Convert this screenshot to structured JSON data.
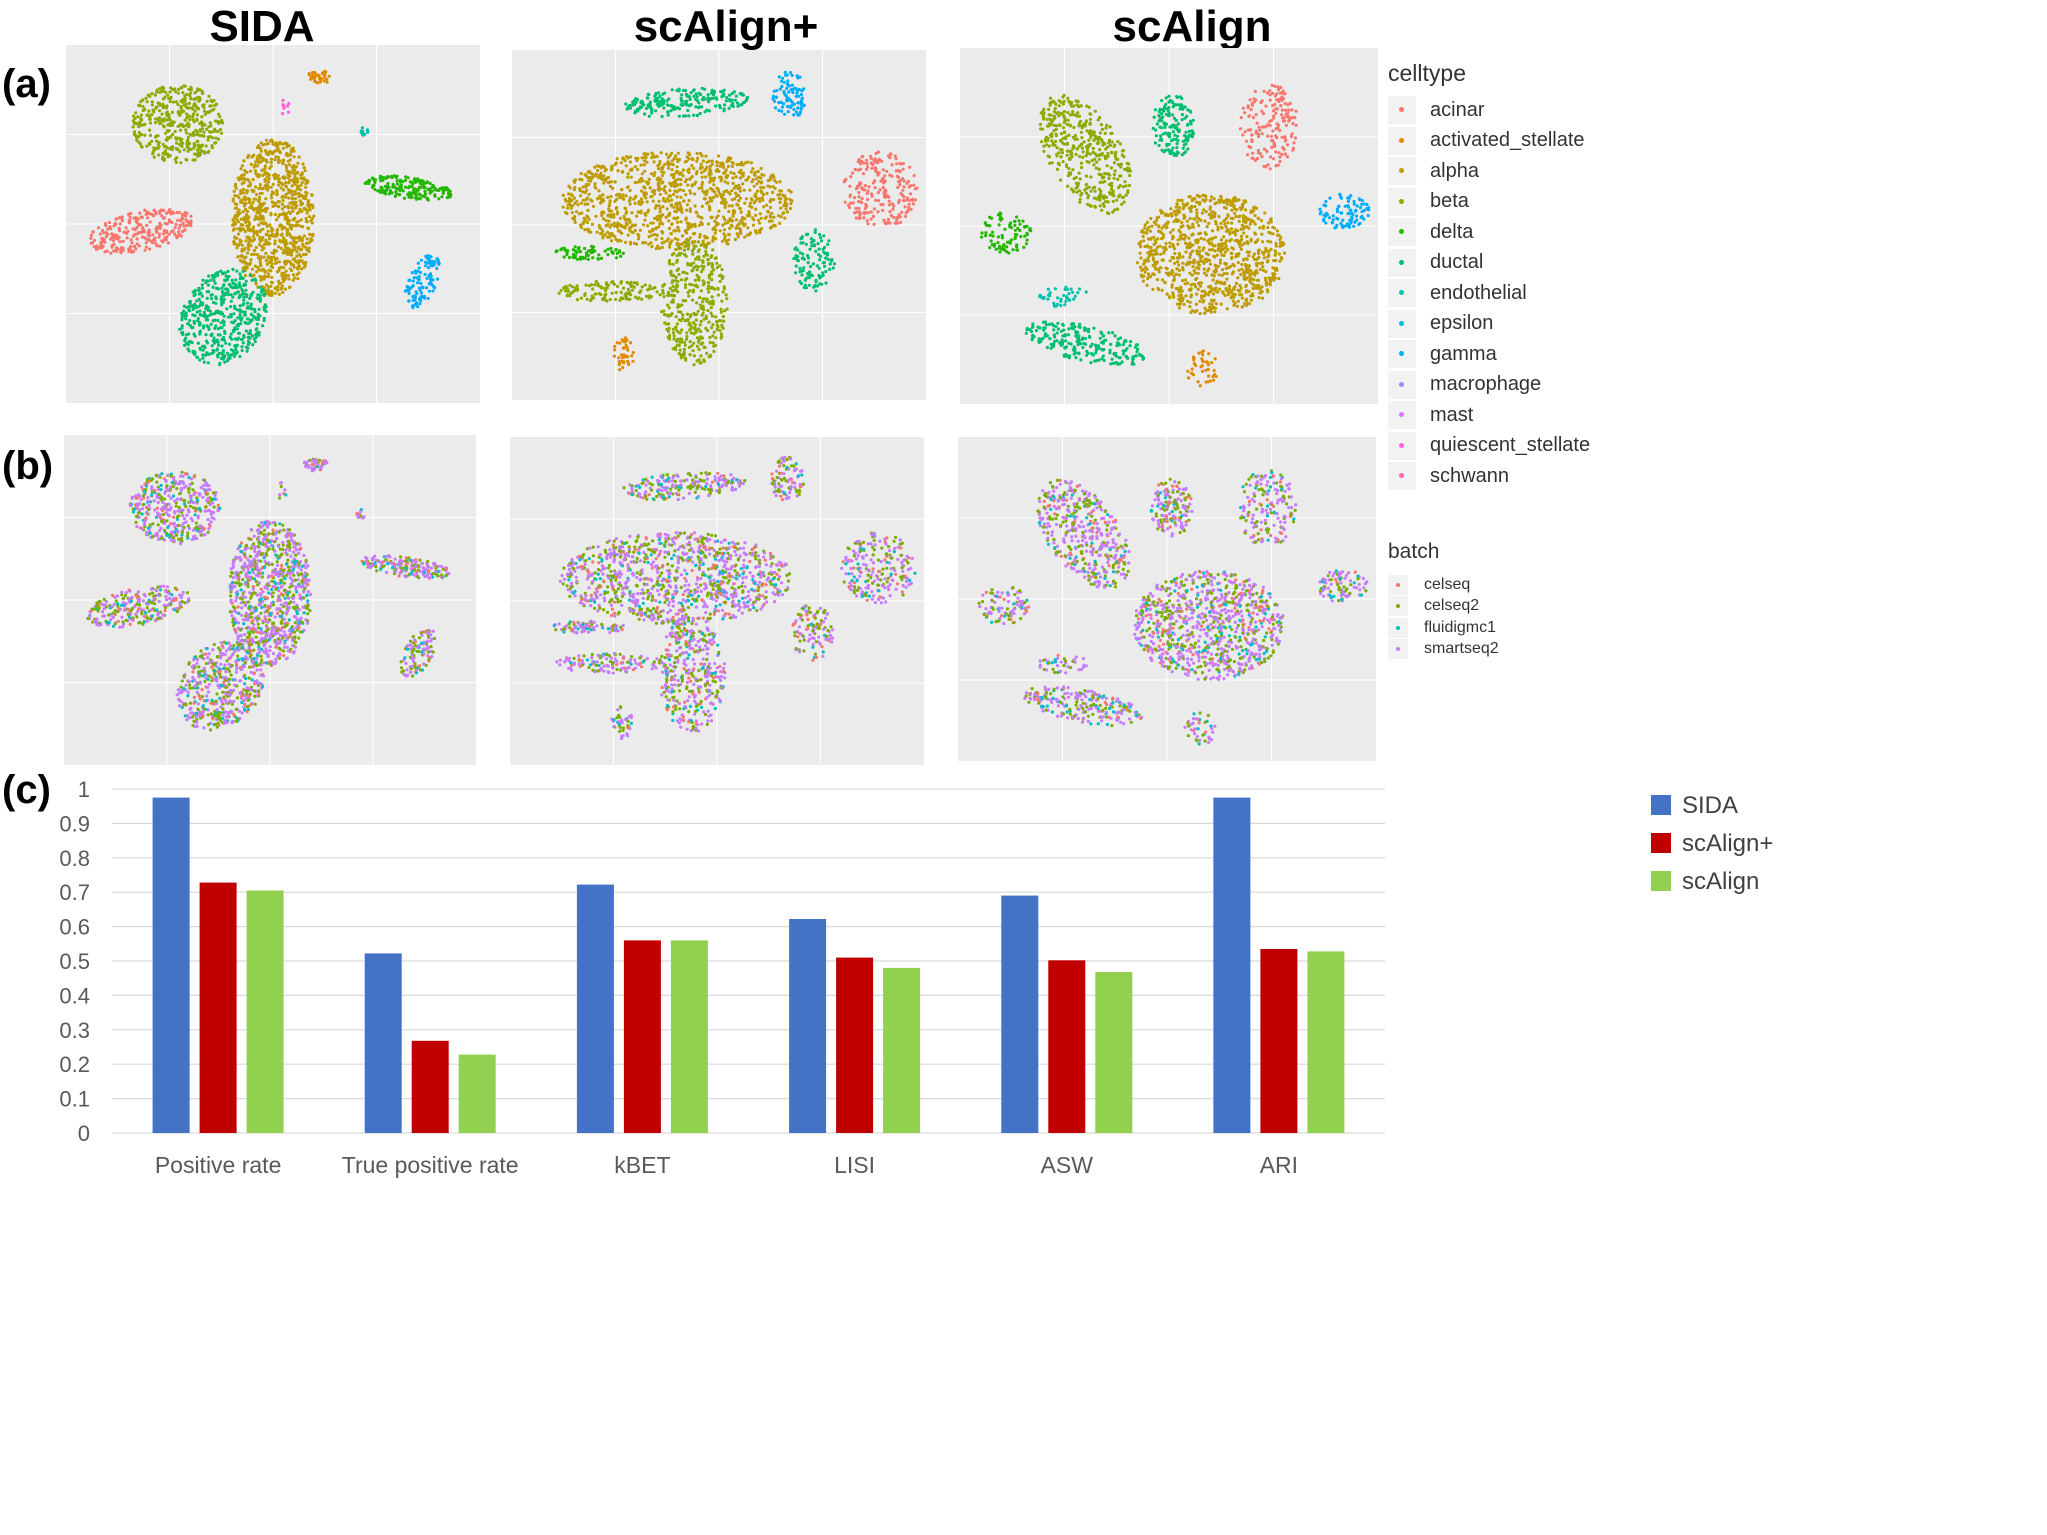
{
  "figure": {
    "column_titles": [
      "SIDA",
      "scAlign+",
      "scAlign"
    ],
    "row_labels": [
      "(a)",
      "(b)",
      "(c)"
    ]
  },
  "celltype_legend": {
    "title": "celltype",
    "items": [
      {
        "label": "acinar",
        "color": "#F8766D"
      },
      {
        "label": "activated_stellate",
        "color": "#E18A00"
      },
      {
        "label": "alpha",
        "color": "#BE9C00"
      },
      {
        "label": "beta",
        "color": "#8CAB00"
      },
      {
        "label": "delta",
        "color": "#24B700"
      },
      {
        "label": "ductal",
        "color": "#00BE70"
      },
      {
        "label": "endothelial",
        "color": "#00C1AB"
      },
      {
        "label": "epsilon",
        "color": "#00BBDA"
      },
      {
        "label": "gamma",
        "color": "#00ACFC"
      },
      {
        "label": "macrophage",
        "color": "#8B93FF"
      },
      {
        "label": "mast",
        "color": "#D575FE"
      },
      {
        "label": "quiescent_stellate",
        "color": "#F962DD"
      },
      {
        "label": "schwann",
        "color": "#FF65AC"
      }
    ]
  },
  "batch_legend": {
    "title": "batch",
    "items": [
      {
        "label": "celseq",
        "color": "#F8766D"
      },
      {
        "label": "celseq2",
        "color": "#7CAE00"
      },
      {
        "label": "fluidigmc1",
        "color": "#00BFC4"
      },
      {
        "label": "smartseq2",
        "color": "#C77CFF"
      }
    ]
  },
  "chart_data": {
    "type": "bar",
    "categories": [
      "Positive rate",
      "True positive rate",
      "kBET",
      "LISI",
      "ASW",
      "ARI"
    ],
    "series": [
      {
        "name": "SIDA",
        "color": "#4472C4",
        "values": [
          0.975,
          0.522,
          0.722,
          0.622,
          0.69,
          0.975
        ]
      },
      {
        "name": "scAlign+",
        "color": "#C00000",
        "values": [
          0.728,
          0.268,
          0.56,
          0.51,
          0.502,
          0.535
        ]
      },
      {
        "name": "scAlign",
        "color": "#92D050",
        "values": [
          0.705,
          0.228,
          0.56,
          0.48,
          0.468,
          0.528
        ]
      }
    ],
    "ylim": [
      0,
      1
    ],
    "yticks": [
      "0",
      "0.1",
      "0.2",
      "0.3",
      "0.4",
      "0.5",
      "0.6",
      "0.7",
      "0.8",
      "0.9",
      "1"
    ],
    "legend_position": "top-right",
    "grid": true
  }
}
